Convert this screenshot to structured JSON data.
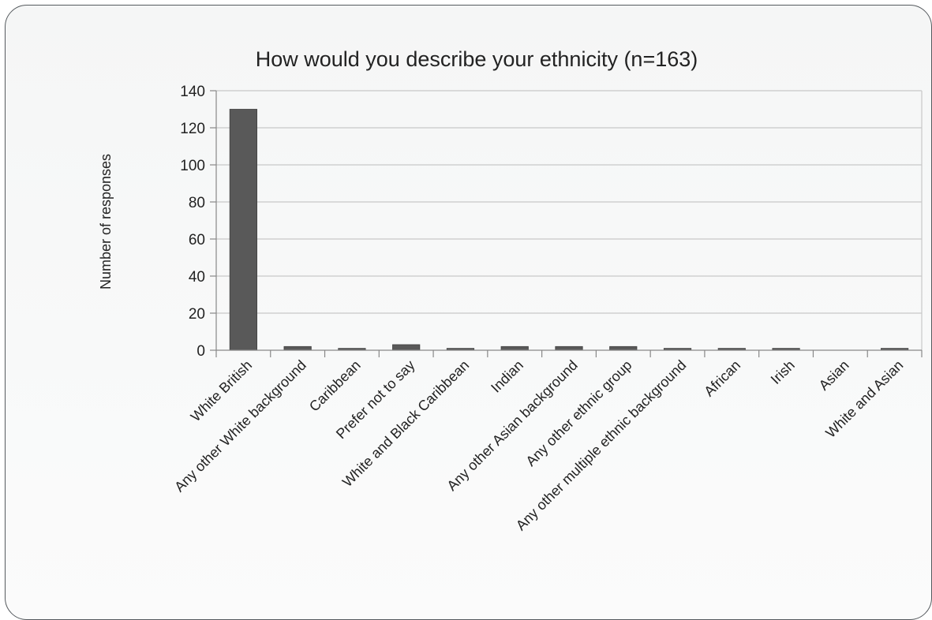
{
  "chart_data": {
    "type": "bar",
    "title": "How would you describe your ethnicity (n=163)",
    "xlabel": "",
    "ylabel": "Number of responses",
    "ylim": [
      0,
      140
    ],
    "yticks": [
      0,
      20,
      40,
      60,
      80,
      100,
      120,
      140
    ],
    "grid": true,
    "legend": "none",
    "bar_color": "#595959",
    "gridline_color": "#c8c8c8",
    "categories": [
      "White British",
      "Any other White background",
      "Caribbean",
      "Prefer not to say",
      "White and Black Caribbean",
      "Indian",
      "Any other Asian background",
      "Any other ethnic group",
      "Any other multiple ethnic background",
      "African",
      "Irish",
      "Asian",
      "White and Asian"
    ],
    "values": [
      130,
      2,
      1,
      3,
      1,
      2,
      2,
      2,
      1,
      1,
      1,
      0,
      1
    ]
  }
}
